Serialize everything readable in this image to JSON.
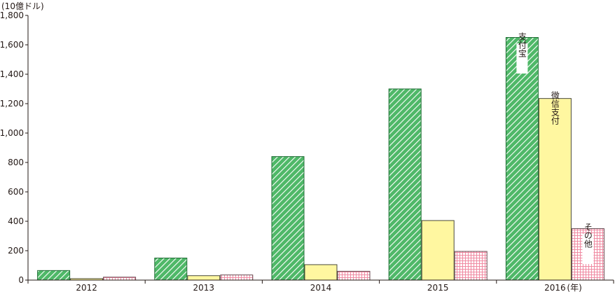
{
  "chart_data": {
    "type": "bar",
    "unit_label": "(10億ドル)",
    "year_suffix": "(年)",
    "categories": [
      "2012",
      "2013",
      "2014",
      "2015",
      "2016"
    ],
    "ylim": [
      0,
      1800
    ],
    "yticks": [
      0,
      200,
      400,
      600,
      800,
      1000,
      1200,
      1400,
      1600,
      1800
    ],
    "ytick_labels": [
      "0",
      "200",
      "400",
      "600",
      "800",
      "1,000",
      "1,200",
      "1,400",
      "1,600",
      "1,800"
    ],
    "grid": false,
    "series": [
      {
        "name": "支付宝",
        "values": [
          65,
          150,
          840,
          1300,
          1650
        ],
        "color": "#3aa655",
        "pattern": "diagonal-hatch"
      },
      {
        "name": "微信支付",
        "values": [
          10,
          30,
          105,
          405,
          1235
        ],
        "color": "#fff7a0",
        "pattern": "solid"
      },
      {
        "name": "その他",
        "values": [
          20,
          35,
          60,
          195,
          350
        ],
        "color": "#e83d6a",
        "pattern": "dotted-grid"
      }
    ]
  }
}
